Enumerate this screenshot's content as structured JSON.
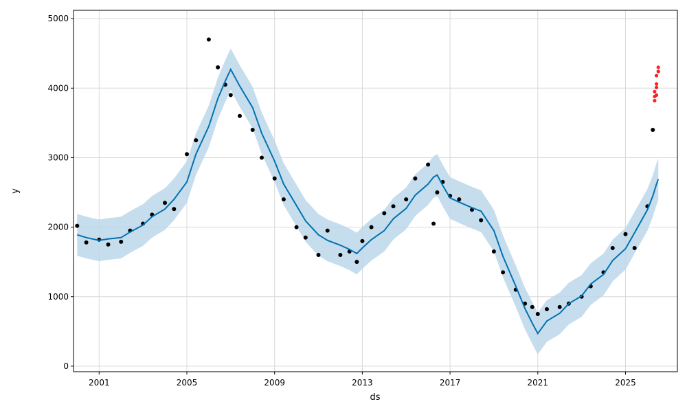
{
  "chart_data": {
    "type": "line",
    "title": "",
    "xlabel": "ds",
    "ylabel": "y",
    "xlim": [
      "1999-11-01",
      "2027-05-15"
    ],
    "ylim": [
      -80,
      5120
    ],
    "x_ticks": [
      "2001",
      "2005",
      "2009",
      "2013",
      "2017",
      "2021",
      "2025"
    ],
    "y_ticks": [
      0,
      1000,
      2000,
      3000,
      4000,
      5000
    ],
    "grid": true,
    "legend": "none",
    "colors": {
      "forecast": "#0072B2",
      "interval": "#bcd7ea",
      "observed": "#000000",
      "outliers": "#ff2020"
    },
    "series": [
      {
        "kind": "forecast",
        "x": [
          "2000-01",
          "2000-06",
          "2001-01",
          "2001-06",
          "2002-01",
          "2002-06",
          "2003-01",
          "2003-06",
          "2004-01",
          "2004-06",
          "2005-01",
          "2005-06",
          "2006-01",
          "2006-06",
          "2006-10",
          "2007-01",
          "2007-06",
          "2008-01",
          "2008-06",
          "2009-01",
          "2009-06",
          "2010-01",
          "2010-06",
          "2011-01",
          "2011-06",
          "2012-01",
          "2012-06",
          "2012-10",
          "2013-01",
          "2013-06",
          "2014-01",
          "2014-06",
          "2015-01",
          "2015-06",
          "2016-01",
          "2016-04",
          "2016-06",
          "2016-09",
          "2017-01",
          "2017-06",
          "2018-01",
          "2018-06",
          "2019-01",
          "2019-06",
          "2020-01",
          "2020-06",
          "2020-10",
          "2021-01",
          "2021-06",
          "2022-01",
          "2022-06",
          "2023-01",
          "2023-06",
          "2024-01",
          "2024-06",
          "2025-01",
          "2025-06",
          "2026-01",
          "2026-04",
          "2026-06",
          "2026-07"
        ],
        "y": [
          1890,
          1850,
          1810,
          1830,
          1850,
          1930,
          2030,
          2150,
          2260,
          2400,
          2650,
          3050,
          3450,
          3850,
          4100,
          4270,
          4030,
          3720,
          3350,
          2950,
          2620,
          2310,
          2090,
          1890,
          1810,
          1740,
          1680,
          1620,
          1700,
          1820,
          1950,
          2120,
          2270,
          2460,
          2620,
          2720,
          2750,
          2600,
          2420,
          2360,
          2280,
          2230,
          1950,
          1580,
          1150,
          830,
          620,
          470,
          650,
          760,
          900,
          1010,
          1180,
          1320,
          1520,
          1690,
          1920,
          2250,
          2450,
          2620,
          2690
        ]
      },
      {
        "kind": "uncertainty_interval",
        "x": [
          "2000-01",
          "2000-06",
          "2001-01",
          "2001-06",
          "2002-01",
          "2002-06",
          "2003-01",
          "2003-06",
          "2004-01",
          "2004-06",
          "2005-01",
          "2005-06",
          "2006-01",
          "2006-06",
          "2006-10",
          "2007-01",
          "2007-06",
          "2008-01",
          "2008-06",
          "2009-01",
          "2009-06",
          "2010-01",
          "2010-06",
          "2011-01",
          "2011-06",
          "2012-01",
          "2012-06",
          "2012-10",
          "2013-01",
          "2013-06",
          "2014-01",
          "2014-06",
          "2015-01",
          "2015-06",
          "2016-01",
          "2016-04",
          "2016-06",
          "2016-09",
          "2017-01",
          "2017-06",
          "2018-01",
          "2018-06",
          "2019-01",
          "2019-06",
          "2020-01",
          "2020-06",
          "2020-10",
          "2021-01",
          "2021-06",
          "2022-01",
          "2022-06",
          "2023-01",
          "2023-06",
          "2024-01",
          "2024-06",
          "2025-01",
          "2025-06",
          "2026-01",
          "2026-04",
          "2026-06",
          "2026-07"
        ],
        "lower": [
          1590,
          1550,
          1510,
          1530,
          1550,
          1630,
          1730,
          1850,
          1960,
          2100,
          2350,
          2750,
          3150,
          3550,
          3800,
          3970,
          3730,
          3420,
          3050,
          2650,
          2320,
          2010,
          1790,
          1590,
          1510,
          1440,
          1380,
          1320,
          1400,
          1520,
          1650,
          1820,
          1970,
          2160,
          2320,
          2420,
          2450,
          2300,
          2120,
          2060,
          1980,
          1930,
          1650,
          1280,
          850,
          530,
          320,
          170,
          350,
          460,
          600,
          710,
          880,
          1020,
          1220,
          1390,
          1620,
          1950,
          2150,
          2320,
          2390
        ],
        "upper": [
          2190,
          2150,
          2110,
          2130,
          2150,
          2230,
          2330,
          2450,
          2560,
          2700,
          2950,
          3350,
          3750,
          4150,
          4400,
          4570,
          4330,
          4020,
          3650,
          3250,
          2920,
          2610,
          2390,
          2190,
          2110,
          2040,
          1980,
          1920,
          2000,
          2120,
          2250,
          2420,
          2570,
          2760,
          2920,
          3020,
          3050,
          2900,
          2720,
          2660,
          2580,
          2530,
          2250,
          1880,
          1450,
          1130,
          920,
          770,
          950,
          1060,
          1200,
          1310,
          1480,
          1620,
          1820,
          1990,
          2220,
          2550,
          2750,
          2920,
          2990
        ]
      },
      {
        "kind": "observed",
        "x": [
          "2000-01",
          "2000-06",
          "2001-01",
          "2001-06",
          "2002-01",
          "2002-06",
          "2003-01",
          "2003-06",
          "2004-01",
          "2004-06",
          "2005-01",
          "2005-06",
          "2006-01",
          "2006-06",
          "2006-10",
          "2007-01",
          "2007-06",
          "2008-01",
          "2008-06",
          "2009-01",
          "2009-06",
          "2010-01",
          "2010-06",
          "2011-01",
          "2011-06",
          "2012-01",
          "2012-06",
          "2012-10",
          "2013-01",
          "2013-06",
          "2014-01",
          "2014-06",
          "2015-01",
          "2015-06",
          "2016-01",
          "2016-04",
          "2016-06",
          "2016-09",
          "2017-01",
          "2017-06",
          "2018-01",
          "2018-06",
          "2019-01",
          "2019-06",
          "2020-01",
          "2020-06",
          "2020-10",
          "2021-01",
          "2021-06",
          "2022-01",
          "2022-06",
          "2023-01",
          "2023-06",
          "2024-01",
          "2024-06",
          "2025-01",
          "2025-06",
          "2026-01",
          "2026-04"
        ],
        "y": [
          2020,
          1780,
          1820,
          1750,
          1790,
          1950,
          2050,
          2180,
          2350,
          2260,
          3050,
          3250,
          4700,
          4300,
          4050,
          3900,
          3600,
          3400,
          3000,
          2700,
          2400,
          2000,
          1850,
          1600,
          1950,
          1600,
          1650,
          1500,
          1800,
          2000,
          2200,
          2300,
          2400,
          2700,
          2900,
          2050,
          2500,
          2650,
          2450,
          2400,
          2250,
          2100,
          1650,
          1350,
          1100,
          900,
          850,
          750,
          820,
          850,
          900,
          1000,
          1150,
          1350,
          1700,
          1900,
          1700,
          2300,
          3400
        ]
      },
      {
        "kind": "outliers",
        "x": [
          "2026-05",
          "2026-05",
          "2026-05",
          "2026-06",
          "2026-06",
          "2026-06",
          "2026-06",
          "2026-07",
          "2026-07"
        ],
        "y": [
          3820,
          3880,
          3950,
          4010,
          3900,
          4060,
          4180,
          4240,
          4300
        ]
      }
    ]
  }
}
